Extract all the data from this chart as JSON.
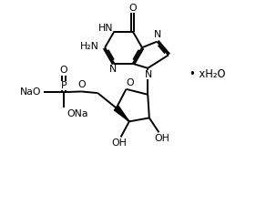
{
  "bg_color": "#ffffff",
  "line_color": "#000000",
  "line_width": 1.4,
  "font_size": 7.8,
  "figsize": [
    2.81,
    2.36
  ],
  "dpi": 100,
  "xlim": [
    0,
    8.5
  ],
  "ylim": [
    0,
    7.0
  ]
}
